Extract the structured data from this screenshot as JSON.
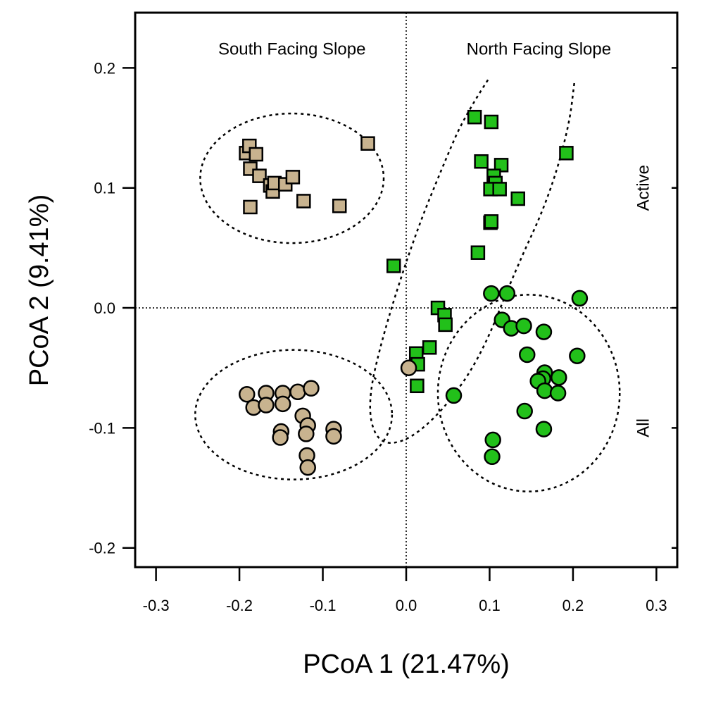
{
  "chart_data": {
    "type": "scatter",
    "title": "",
    "xlabel": "PCoA 1 (21.47%)",
    "ylabel": "PCoA 2 (9.41%)",
    "xlim": [
      -0.325,
      0.325
    ],
    "ylim": [
      -0.216,
      0.246
    ],
    "x_ticks": [
      -0.3,
      -0.2,
      -0.1,
      0.0,
      0.1,
      0.2,
      0.3
    ],
    "x_tick_labels": [
      "-0.3",
      "-0.2",
      "-0.1",
      "0.0",
      "0.1",
      "0.2",
      "0.3"
    ],
    "y_ticks": [
      0.2,
      0.1,
      0.0,
      -0.1,
      -0.2
    ],
    "y_tick_labels": [
      "0.2",
      "0.1",
      "0.0",
      "-0.1",
      "-0.2"
    ],
    "reference_lines": {
      "x": 0.0,
      "y": 0.0,
      "style": "dotted"
    },
    "grid": false,
    "annotations": [
      {
        "text": "South Facing Slope",
        "x": -0.137,
        "y": 0.211,
        "rotate": false
      },
      {
        "text": "North Facing Slope",
        "x": 0.159,
        "y": 0.211,
        "rotate": false
      },
      {
        "text": "Active",
        "x": 0.284,
        "y": 0.1,
        "rotate": true
      },
      {
        "text": "All",
        "x": 0.284,
        "y": -0.1,
        "rotate": true
      }
    ],
    "colors": {
      "south": "#c8b38f",
      "north": "#22c01a",
      "edge": "#000000"
    },
    "series": [
      {
        "marker": "square",
        "color": "#c8b38f",
        "points": [
          [
            -0.192,
            0.129
          ],
          [
            -0.188,
            0.135
          ],
          [
            -0.18,
            0.128
          ],
          [
            -0.187,
            0.116
          ],
          [
            -0.176,
            0.11
          ],
          [
            -0.163,
            0.102
          ],
          [
            -0.16,
            0.097
          ],
          [
            -0.158,
            0.104
          ],
          [
            -0.145,
            0.103
          ],
          [
            -0.136,
            0.109
          ],
          [
            -0.123,
            0.089
          ],
          [
            -0.08,
            0.085
          ],
          [
            -0.187,
            0.084
          ],
          [
            -0.046,
            0.137
          ]
        ]
      },
      {
        "marker": "square",
        "color": "#22c01a",
        "points": [
          [
            0.082,
            0.159
          ],
          [
            0.102,
            0.155
          ],
          [
            0.09,
            0.122
          ],
          [
            0.114,
            0.119
          ],
          [
            0.105,
            0.11
          ],
          [
            0.107,
            0.104
          ],
          [
            0.101,
            0.099
          ],
          [
            0.112,
            0.099
          ],
          [
            0.134,
            0.091
          ],
          [
            0.101,
            0.071
          ],
          [
            0.102,
            0.072
          ],
          [
            0.086,
            0.046
          ],
          [
            0.192,
            0.129
          ],
          [
            -0.015,
            0.035
          ],
          [
            0.038,
            0.0
          ],
          [
            0.046,
            -0.006
          ],
          [
            0.047,
            -0.014
          ],
          [
            0.012,
            -0.038
          ],
          [
            0.014,
            -0.047
          ],
          [
            0.028,
            -0.033
          ],
          [
            0.013,
            -0.065
          ]
        ]
      },
      {
        "marker": "circle",
        "color": "#c8b38f",
        "points": [
          [
            -0.191,
            -0.072
          ],
          [
            -0.183,
            -0.083
          ],
          [
            -0.168,
            -0.071
          ],
          [
            -0.168,
            -0.081
          ],
          [
            -0.148,
            -0.071
          ],
          [
            -0.148,
            -0.08
          ],
          [
            -0.13,
            -0.07
          ],
          [
            -0.114,
            -0.067
          ],
          [
            -0.124,
            -0.09
          ],
          [
            -0.118,
            -0.098
          ],
          [
            -0.12,
            -0.105
          ],
          [
            -0.15,
            -0.103
          ],
          [
            -0.151,
            -0.108
          ],
          [
            -0.087,
            -0.101
          ],
          [
            -0.087,
            -0.107
          ],
          [
            -0.119,
            -0.123
          ],
          [
            -0.118,
            -0.133
          ],
          [
            0.003,
            -0.05
          ]
        ]
      },
      {
        "marker": "circle",
        "color": "#22c01a",
        "points": [
          [
            0.102,
            0.012
          ],
          [
            0.121,
            0.012
          ],
          [
            0.208,
            0.008
          ],
          [
            0.115,
            -0.01
          ],
          [
            0.126,
            -0.017
          ],
          [
            0.141,
            -0.015
          ],
          [
            0.165,
            -0.02
          ],
          [
            0.145,
            -0.039
          ],
          [
            0.205,
            -0.04
          ],
          [
            0.166,
            -0.054
          ],
          [
            0.164,
            -0.059
          ],
          [
            0.183,
            -0.058
          ],
          [
            0.158,
            -0.061
          ],
          [
            0.166,
            -0.069
          ],
          [
            0.182,
            -0.071
          ],
          [
            0.142,
            -0.086
          ],
          [
            0.165,
            -0.101
          ],
          [
            0.104,
            -0.11
          ],
          [
            0.103,
            -0.124
          ],
          [
            0.057,
            -0.073
          ]
        ]
      }
    ],
    "ellipses": [
      {
        "cx": -0.137,
        "cy": 0.108,
        "rx": 0.11,
        "ry": 0.054
      },
      {
        "cx": -0.135,
        "cy": -0.089,
        "rx": 0.118,
        "ry": 0.054
      },
      {
        "cx": 0.147,
        "cy": -0.071,
        "rx": 0.109,
        "ry": 0.082
      }
    ],
    "north_envelope": [
      [
        0.098,
        0.19
      ],
      [
        0.07,
        0.16
      ],
      [
        0.045,
        0.12
      ],
      [
        0.01,
        0.06
      ],
      [
        -0.027,
        -0.02
      ],
      [
        -0.047,
        -0.08
      ],
      [
        -0.035,
        -0.113
      ],
      [
        0.0,
        -0.112
      ],
      [
        0.045,
        -0.085
      ],
      [
        0.09,
        -0.04
      ],
      [
        0.13,
        0.03
      ],
      [
        0.17,
        0.09
      ],
      [
        0.195,
        0.15
      ],
      [
        0.202,
        0.19
      ]
    ]
  }
}
